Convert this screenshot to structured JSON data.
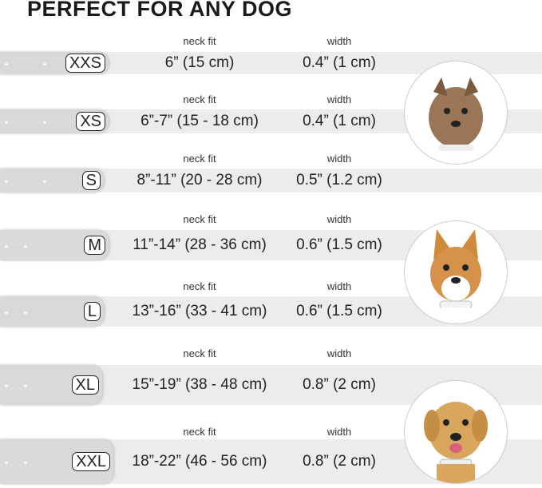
{
  "title": "PERFECT FOR ANY DOG",
  "neck_fit_label": "neck fit",
  "width_label": "width",
  "sizes": [
    {
      "size": "XXS",
      "neck": "6” (15 cm)",
      "width": "0.4” (1 cm)"
    },
    {
      "size": "XS",
      "neck": "6”-7” (15 - 18 cm)",
      "width": "0.4” (1 cm)"
    },
    {
      "size": "S",
      "neck": "8”-11” (20 - 28 cm)",
      "width": "0.5” (1.2 cm)"
    },
    {
      "size": "M",
      "neck": "11”-14” (28 - 36 cm)",
      "width": "0.6” (1.5 cm)"
    },
    {
      "size": "L",
      "neck": "13”-16” (33 - 41 cm)",
      "width": "0.6” (1.5 cm)"
    },
    {
      "size": "XL",
      "neck": "15”-19” (38 - 48 cm)",
      "width": "0.8” (2 cm)"
    },
    {
      "size": "XXL",
      "neck": "18”-22” (46 - 56 cm)",
      "width": "0.8” (2 cm)"
    }
  ],
  "images": [
    "terrier-photo",
    "corgi-photo",
    "labrador-photo"
  ]
}
